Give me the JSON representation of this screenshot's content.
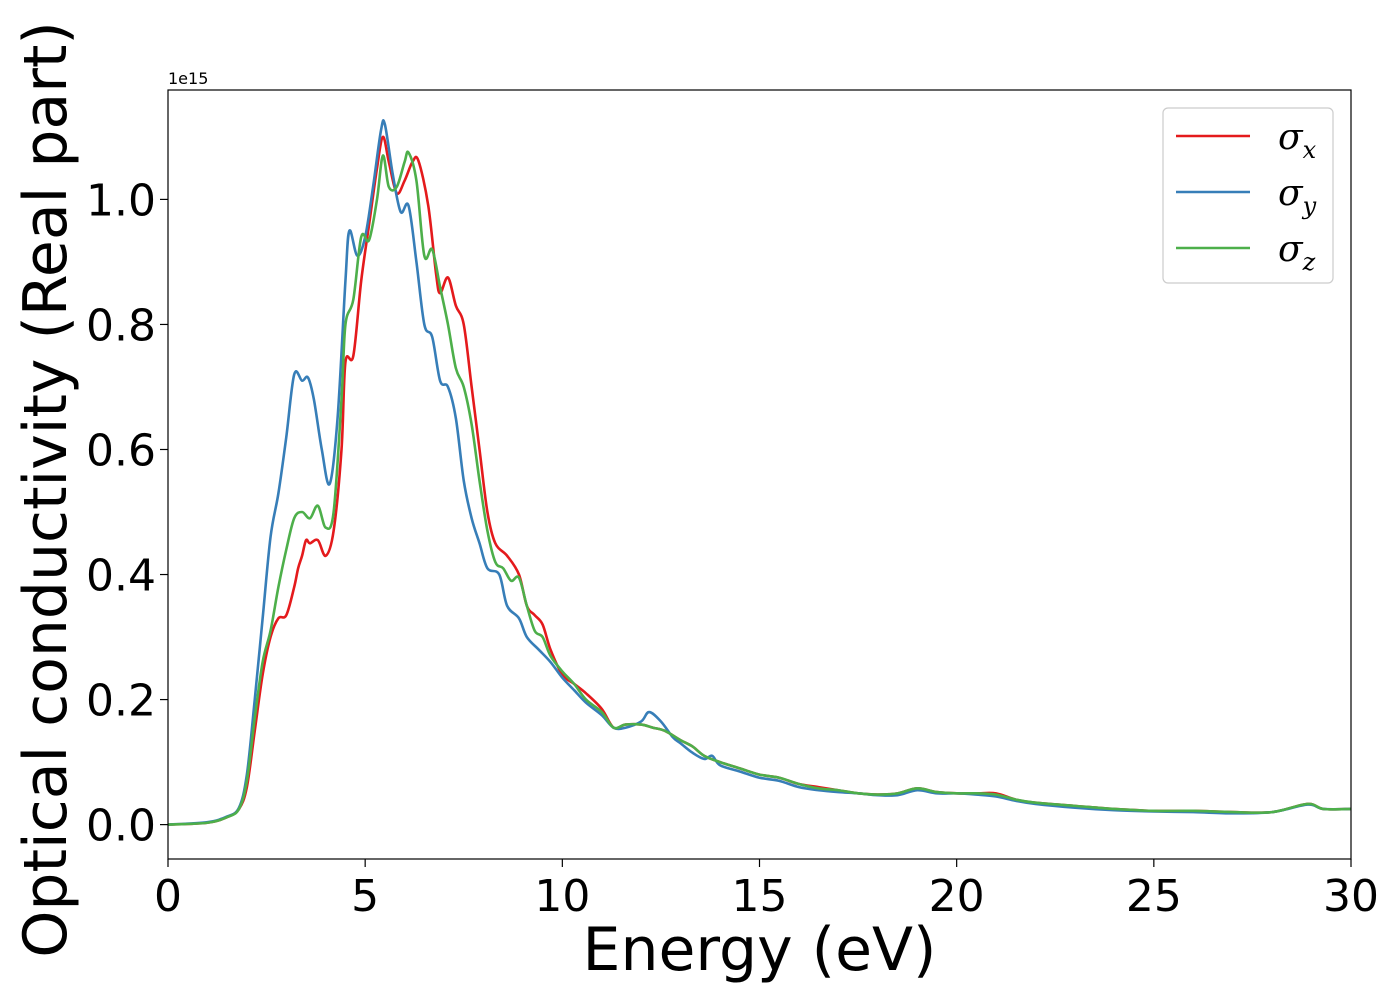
{
  "chart_data": {
    "type": "line",
    "title": "",
    "xlabel": "Energy (eV)",
    "ylabel": "Optical conductivity (Real part)",
    "y_offset_text": "1e15",
    "xlim": [
      0,
      30
    ],
    "ylim": [
      -0.055,
      1.175
    ],
    "x_ticks": [
      0,
      5,
      10,
      15,
      20,
      25,
      30
    ],
    "x_tick_labels": [
      "0",
      "5",
      "10",
      "15",
      "20",
      "25",
      "30"
    ],
    "y_ticks": [
      0.0,
      0.2,
      0.4,
      0.6,
      0.8,
      1.0
    ],
    "y_tick_labels": [
      "0.0",
      "0.2",
      "0.4",
      "0.6",
      "0.8",
      "1.0"
    ],
    "grid": false,
    "legend_position": "top-right",
    "series": [
      {
        "name": "σx",
        "label_base": "σ",
        "label_sub": "x",
        "color": "#e41a1c",
        "points": [
          [
            0,
            0
          ],
          [
            1,
            0.003
          ],
          [
            1.5,
            0.012
          ],
          [
            1.8,
            0.025
          ],
          [
            2.0,
            0.06
          ],
          [
            2.2,
            0.15
          ],
          [
            2.4,
            0.24
          ],
          [
            2.6,
            0.3
          ],
          [
            2.8,
            0.33
          ],
          [
            3.0,
            0.335
          ],
          [
            3.2,
            0.38
          ],
          [
            3.3,
            0.41
          ],
          [
            3.4,
            0.43
          ],
          [
            3.5,
            0.455
          ],
          [
            3.6,
            0.45
          ],
          [
            3.8,
            0.455
          ],
          [
            4.0,
            0.43
          ],
          [
            4.2,
            0.47
          ],
          [
            4.4,
            0.6
          ],
          [
            4.5,
            0.74
          ],
          [
            4.7,
            0.75
          ],
          [
            4.9,
            0.87
          ],
          [
            5.1,
            0.96
          ],
          [
            5.3,
            1.05
          ],
          [
            5.45,
            1.1
          ],
          [
            5.6,
            1.06
          ],
          [
            5.8,
            1.01
          ],
          [
            6.0,
            1.03
          ],
          [
            6.2,
            1.06
          ],
          [
            6.35,
            1.062
          ],
          [
            6.6,
            0.99
          ],
          [
            6.8,
            0.88
          ],
          [
            6.9,
            0.85
          ],
          [
            7.1,
            0.875
          ],
          [
            7.3,
            0.83
          ],
          [
            7.5,
            0.8
          ],
          [
            7.7,
            0.7
          ],
          [
            7.9,
            0.6
          ],
          [
            8.1,
            0.5
          ],
          [
            8.3,
            0.45
          ],
          [
            8.6,
            0.43
          ],
          [
            8.9,
            0.4
          ],
          [
            9.1,
            0.35
          ],
          [
            9.3,
            0.335
          ],
          [
            9.5,
            0.32
          ],
          [
            9.7,
            0.28
          ],
          [
            10.0,
            0.24
          ],
          [
            10.3,
            0.225
          ],
          [
            10.6,
            0.21
          ],
          [
            11.0,
            0.185
          ],
          [
            11.3,
            0.155
          ],
          [
            11.6,
            0.16
          ],
          [
            12.0,
            0.16
          ],
          [
            12.3,
            0.155
          ],
          [
            12.6,
            0.15
          ],
          [
            13.0,
            0.135
          ],
          [
            13.3,
            0.125
          ],
          [
            13.6,
            0.11
          ],
          [
            14.0,
            0.1
          ],
          [
            14.5,
            0.09
          ],
          [
            15.0,
            0.08
          ],
          [
            15.5,
            0.075
          ],
          [
            16.0,
            0.065
          ],
          [
            16.5,
            0.06
          ],
          [
            17.0,
            0.055
          ],
          [
            17.5,
            0.05
          ],
          [
            18.0,
            0.048
          ],
          [
            18.5,
            0.05
          ],
          [
            19.0,
            0.058
          ],
          [
            19.5,
            0.052
          ],
          [
            20.0,
            0.05
          ],
          [
            20.5,
            0.05
          ],
          [
            21.0,
            0.05
          ],
          [
            21.5,
            0.04
          ],
          [
            22.0,
            0.035
          ],
          [
            23.0,
            0.03
          ],
          [
            24.0,
            0.025
          ],
          [
            25.0,
            0.022
          ],
          [
            26.0,
            0.022
          ],
          [
            27.0,
            0.02
          ],
          [
            28.0,
            0.02
          ],
          [
            28.9,
            0.033
          ],
          [
            29.3,
            0.025
          ],
          [
            30,
            0.025
          ]
        ]
      },
      {
        "name": "σy",
        "label_base": "σ",
        "label_sub": "y",
        "color": "#377eb8",
        "points": [
          [
            0,
            0
          ],
          [
            1,
            0.004
          ],
          [
            1.5,
            0.013
          ],
          [
            1.8,
            0.027
          ],
          [
            2.0,
            0.08
          ],
          [
            2.2,
            0.2
          ],
          [
            2.4,
            0.33
          ],
          [
            2.6,
            0.46
          ],
          [
            2.8,
            0.53
          ],
          [
            3.0,
            0.62
          ],
          [
            3.2,
            0.72
          ],
          [
            3.4,
            0.71
          ],
          [
            3.55,
            0.715
          ],
          [
            3.7,
            0.68
          ],
          [
            3.9,
            0.6
          ],
          [
            4.1,
            0.545
          ],
          [
            4.3,
            0.65
          ],
          [
            4.5,
            0.87
          ],
          [
            4.6,
            0.95
          ],
          [
            4.8,
            0.91
          ],
          [
            5.0,
            0.94
          ],
          [
            5.2,
            1.02
          ],
          [
            5.4,
            1.11
          ],
          [
            5.5,
            1.12
          ],
          [
            5.7,
            1.04
          ],
          [
            5.9,
            0.98
          ],
          [
            6.1,
            0.99
          ],
          [
            6.3,
            0.9
          ],
          [
            6.5,
            0.8
          ],
          [
            6.7,
            0.78
          ],
          [
            6.9,
            0.71
          ],
          [
            7.1,
            0.7
          ],
          [
            7.3,
            0.65
          ],
          [
            7.5,
            0.55
          ],
          [
            7.7,
            0.49
          ],
          [
            7.9,
            0.45
          ],
          [
            8.1,
            0.41
          ],
          [
            8.4,
            0.4
          ],
          [
            8.6,
            0.35
          ],
          [
            8.9,
            0.33
          ],
          [
            9.1,
            0.3
          ],
          [
            9.4,
            0.28
          ],
          [
            9.7,
            0.26
          ],
          [
            10.0,
            0.235
          ],
          [
            10.3,
            0.215
          ],
          [
            10.6,
            0.195
          ],
          [
            11.0,
            0.175
          ],
          [
            11.3,
            0.155
          ],
          [
            11.6,
            0.155
          ],
          [
            12.0,
            0.165
          ],
          [
            12.2,
            0.18
          ],
          [
            12.5,
            0.165
          ],
          [
            12.8,
            0.14
          ],
          [
            13.0,
            0.13
          ],
          [
            13.3,
            0.115
          ],
          [
            13.6,
            0.105
          ],
          [
            13.8,
            0.11
          ],
          [
            14.0,
            0.095
          ],
          [
            14.5,
            0.085
          ],
          [
            15.0,
            0.075
          ],
          [
            15.5,
            0.07
          ],
          [
            16.0,
            0.06
          ],
          [
            16.5,
            0.055
          ],
          [
            17.0,
            0.052
          ],
          [
            17.5,
            0.05
          ],
          [
            18.0,
            0.047
          ],
          [
            18.5,
            0.047
          ],
          [
            19.0,
            0.055
          ],
          [
            19.5,
            0.05
          ],
          [
            20.0,
            0.05
          ],
          [
            20.5,
            0.048
          ],
          [
            21.0,
            0.045
          ],
          [
            21.5,
            0.038
          ],
          [
            22.0,
            0.033
          ],
          [
            23.0,
            0.027
          ],
          [
            24.0,
            0.023
          ],
          [
            25.0,
            0.021
          ],
          [
            26.0,
            0.02
          ],
          [
            27.0,
            0.018
          ],
          [
            28.0,
            0.02
          ],
          [
            28.9,
            0.032
          ],
          [
            29.3,
            0.025
          ],
          [
            30,
            0.025
          ]
        ]
      },
      {
        "name": "σz",
        "label_base": "σ",
        "label_sub": "z",
        "color": "#4daf4a",
        "points": [
          [
            0,
            0
          ],
          [
            1,
            0.003
          ],
          [
            1.5,
            0.012
          ],
          [
            1.8,
            0.025
          ],
          [
            2.0,
            0.07
          ],
          [
            2.2,
            0.17
          ],
          [
            2.4,
            0.26
          ],
          [
            2.6,
            0.31
          ],
          [
            2.8,
            0.38
          ],
          [
            3.0,
            0.44
          ],
          [
            3.2,
            0.49
          ],
          [
            3.4,
            0.5
          ],
          [
            3.6,
            0.49
          ],
          [
            3.8,
            0.51
          ],
          [
            4.0,
            0.475
          ],
          [
            4.2,
            0.5
          ],
          [
            4.4,
            0.68
          ],
          [
            4.5,
            0.8
          ],
          [
            4.7,
            0.84
          ],
          [
            4.9,
            0.94
          ],
          [
            5.1,
            0.935
          ],
          [
            5.3,
            1.0
          ],
          [
            5.45,
            1.07
          ],
          [
            5.6,
            1.02
          ],
          [
            5.8,
            1.02
          ],
          [
            6.0,
            1.06
          ],
          [
            6.1,
            1.075
          ],
          [
            6.3,
            1.03
          ],
          [
            6.5,
            0.91
          ],
          [
            6.7,
            0.92
          ],
          [
            6.9,
            0.86
          ],
          [
            7.1,
            0.8
          ],
          [
            7.3,
            0.73
          ],
          [
            7.5,
            0.7
          ],
          [
            7.7,
            0.64
          ],
          [
            7.9,
            0.55
          ],
          [
            8.1,
            0.47
          ],
          [
            8.3,
            0.42
          ],
          [
            8.5,
            0.41
          ],
          [
            8.7,
            0.39
          ],
          [
            8.9,
            0.395
          ],
          [
            9.1,
            0.35
          ],
          [
            9.3,
            0.31
          ],
          [
            9.5,
            0.3
          ],
          [
            9.7,
            0.27
          ],
          [
            10.0,
            0.245
          ],
          [
            10.3,
            0.225
          ],
          [
            10.6,
            0.2
          ],
          [
            11.0,
            0.18
          ],
          [
            11.3,
            0.155
          ],
          [
            11.6,
            0.16
          ],
          [
            12.0,
            0.16
          ],
          [
            12.3,
            0.155
          ],
          [
            12.6,
            0.15
          ],
          [
            13.0,
            0.135
          ],
          [
            13.3,
            0.125
          ],
          [
            13.6,
            0.11
          ],
          [
            14.0,
            0.1
          ],
          [
            14.5,
            0.09
          ],
          [
            15.0,
            0.08
          ],
          [
            15.5,
            0.075
          ],
          [
            16.0,
            0.065
          ],
          [
            16.5,
            0.058
          ],
          [
            17.0,
            0.055
          ],
          [
            17.5,
            0.05
          ],
          [
            18.0,
            0.048
          ],
          [
            18.5,
            0.05
          ],
          [
            19.0,
            0.058
          ],
          [
            19.5,
            0.052
          ],
          [
            20.0,
            0.05
          ],
          [
            20.5,
            0.05
          ],
          [
            21.0,
            0.048
          ],
          [
            21.5,
            0.04
          ],
          [
            22.0,
            0.035
          ],
          [
            23.0,
            0.03
          ],
          [
            24.0,
            0.025
          ],
          [
            25.0,
            0.022
          ],
          [
            26.0,
            0.022
          ],
          [
            27.0,
            0.02
          ],
          [
            28.0,
            0.02
          ],
          [
            28.9,
            0.033
          ],
          [
            29.3,
            0.025
          ],
          [
            30,
            0.025
          ]
        ]
      }
    ]
  }
}
